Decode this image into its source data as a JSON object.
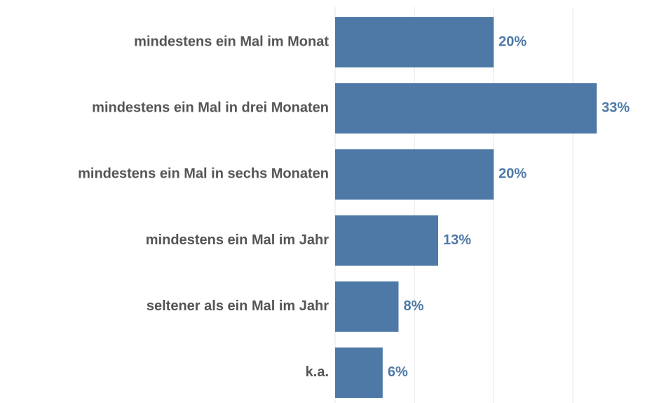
{
  "chart_data": {
    "type": "bar",
    "orientation": "horizontal",
    "categories": [
      "mindestens ein Mal im Monat",
      "mindestens ein Mal in drei Monaten",
      "mindestens ein Mal in sechs Monaten",
      "mindestens ein Mal im Jahr",
      "seltener als ein Mal im Jahr",
      "k.a."
    ],
    "values": [
      20,
      33,
      20,
      13,
      8,
      6
    ],
    "value_labels": [
      "20%",
      "33%",
      "20%",
      "13%",
      "8%",
      "6%"
    ],
    "color": "#4e79a7",
    "xlim": [
      0,
      39
    ],
    "xticks": [
      0,
      10,
      20,
      30
    ],
    "grid": true
  }
}
